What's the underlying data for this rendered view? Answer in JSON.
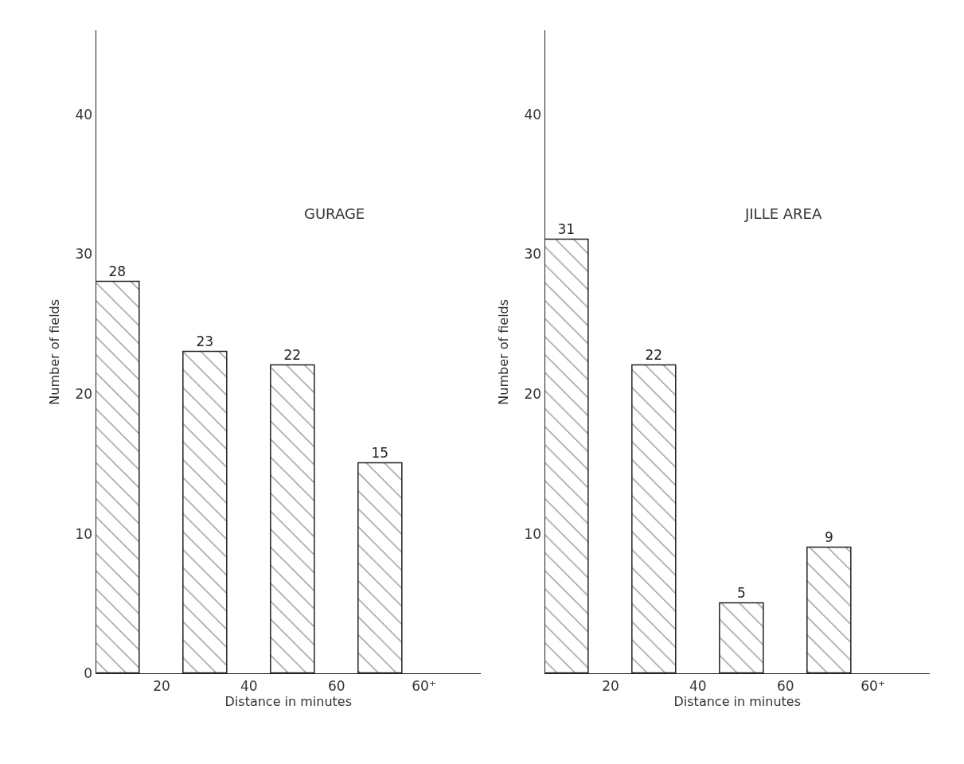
{
  "chart_data": [
    {
      "type": "bar",
      "title": "GURAGE",
      "xlabel": "Distance in minutes",
      "ylabel": "Number of fields",
      "categories": [
        null,
        "20",
        null,
        "40",
        null,
        "60",
        null,
        "60⁺"
      ],
      "values": [
        28,
        null,
        23,
        null,
        22,
        null,
        15,
        null
      ],
      "color": "#222222",
      "data_labels": true,
      "ylim": [
        0,
        46
      ],
      "yticks": [
        0,
        10,
        20,
        30,
        40
      ]
    },
    {
      "type": "bar",
      "title": "JILLE AREA",
      "xlabel": "Distance in minutes",
      "ylabel": "Number of fields",
      "categories": [
        null,
        "20",
        null,
        "40",
        null,
        "60",
        null,
        "60⁺"
      ],
      "values": [
        31,
        null,
        22,
        null,
        5,
        null,
        9,
        null
      ],
      "color": "#222222",
      "data_labels": true,
      "ylim": [
        0,
        46
      ],
      "yticks": [
        10,
        20,
        30,
        40
      ]
    }
  ]
}
